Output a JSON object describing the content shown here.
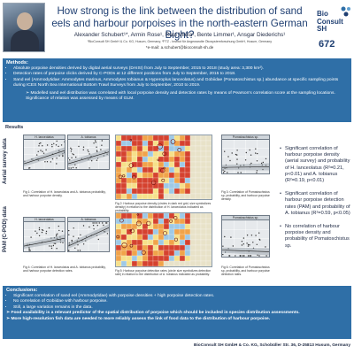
{
  "header": {
    "title": "How strong is the link between the distribution of sand eels and harbour porpoises in the north-eastern German Bight?",
    "authors": "Alexander Schubert¹*, Armin Rose¹, Raul Vilela¹, Bente Limmer¹, Ansgar Diederichs¹",
    "affiliation": "¹BioConsult SH GmbH & Co. KG, Husum, Germany; ²FTZ - Institut für Angewandte Ökosystemforschung GmbH, Husum, Germany",
    "email": "*e-mail: a.schubert@bioconsult-sh.de",
    "logo_line1": "Bio",
    "logo_line2": "Consult",
    "logo_line3": "SH",
    "poster_number": "672"
  },
  "methods": {
    "title": "Methods:",
    "items": [
      "Absolute porpoise densities derived by digital aerial surveys (DAISI) from July to September, 2015 to 2018 (study area: 3,300 km²).",
      "Detection rates of porpoise clicks derived by C-PODs at 12 different positions from July to September, 2015 to 2018.",
      "Sand eel (Ammodytidae: Ammodytes marinus, Ammodytes tobianus & Hyperoplus lanceolatus) and Gobiidae (Pomatoschistus sp.) abundance at specific sampling points during ICES North Sea International Bottom Trawl Surveys from July to September, 2010 to 2019."
    ],
    "note": "➢  Modelled sand eel distribution was correlated with local porpoise density and detection rates by means of Pearson’s correlation score at the sampling locations. Significance of relation was assessed by means of GLM."
  },
  "results": {
    "title": "Results",
    "row_labels": [
      "Aerial survey data",
      "PAM (C-POD) data"
    ],
    "panels": [
      {
        "title": "H. lanceolatus"
      },
      {
        "title": "A. tobianus"
      },
      {
        "title": "Pomatoschistus sp."
      },
      {
        "title": "H. lanceolatus"
      },
      {
        "title": "A. tobianus"
      },
      {
        "title": "Pomatoschistus sp."
      }
    ],
    "captions": [
      "Fig 1: Correlation of H. lanceolatus and A. tobianus probability, and harbour porpoise density.",
      "Fig 2: Harbour porpoise density (circles in dark red grid, size symbolizes density) in relation to the distribution of H. lanceolatus indicated as probability.",
      "Fig 3: Correlation of Pomatoschistus sp. probability, and harbour porpoise density.",
      "Fig 4: Correlation of H. lanceolatus and A. tobianus probability, and harbour porpoise detection rates.",
      "Fig 5: Harbour porpoise detection rates (circle size symbolizes detection rate) in relation to the distribution of A. tobianus indicated as probability.",
      "Fig 6: Correlation of Pomatoschistus sp. probability, and harbour porpoise detection rates."
    ],
    "findings": [
      "Significant correlation of harbour porpoise density (aerial survey) and probability of H. lanceolatus (R²=0.21, p<0.01) and A. tobianus (R²=0.19, p<0.01)",
      "Significant correlation of harbour porpoise detection rates (PAM) and probability of A. tobianus (R²=0.59, p<0.05)",
      "No correlation of harbour porpoise density and probability of Pomatoschistus sp."
    ]
  },
  "conclusions": {
    "title": "Conclusions:",
    "items": [
      "Significant correlation of sand eel (Ammodytidae) with porpoise densities + high porpoise detection rates.",
      "No correlation of Gobiidae with harbour porpoise.",
      "Still, a large variation remains in the data."
    ],
    "arrows": [
      "➢ Food availability is a relevant predictor of the spatial distribution of porpoise which should be included in species distribution assessments.",
      "➢ More high-resolution fish data are needed to more reliably assess the link of food data to the distribution of harbour porpoise."
    ]
  },
  "footer": "BioConsult SH GmbH & Co. KG, Schobüller Str. 36, D-25813 Husum, Germany",
  "colors": {
    "section_blue": "#2f6fa7",
    "title_blue": "#1f3f72",
    "grid_bg": "#e6e9ec",
    "regression_line": "#1a1a1a"
  }
}
